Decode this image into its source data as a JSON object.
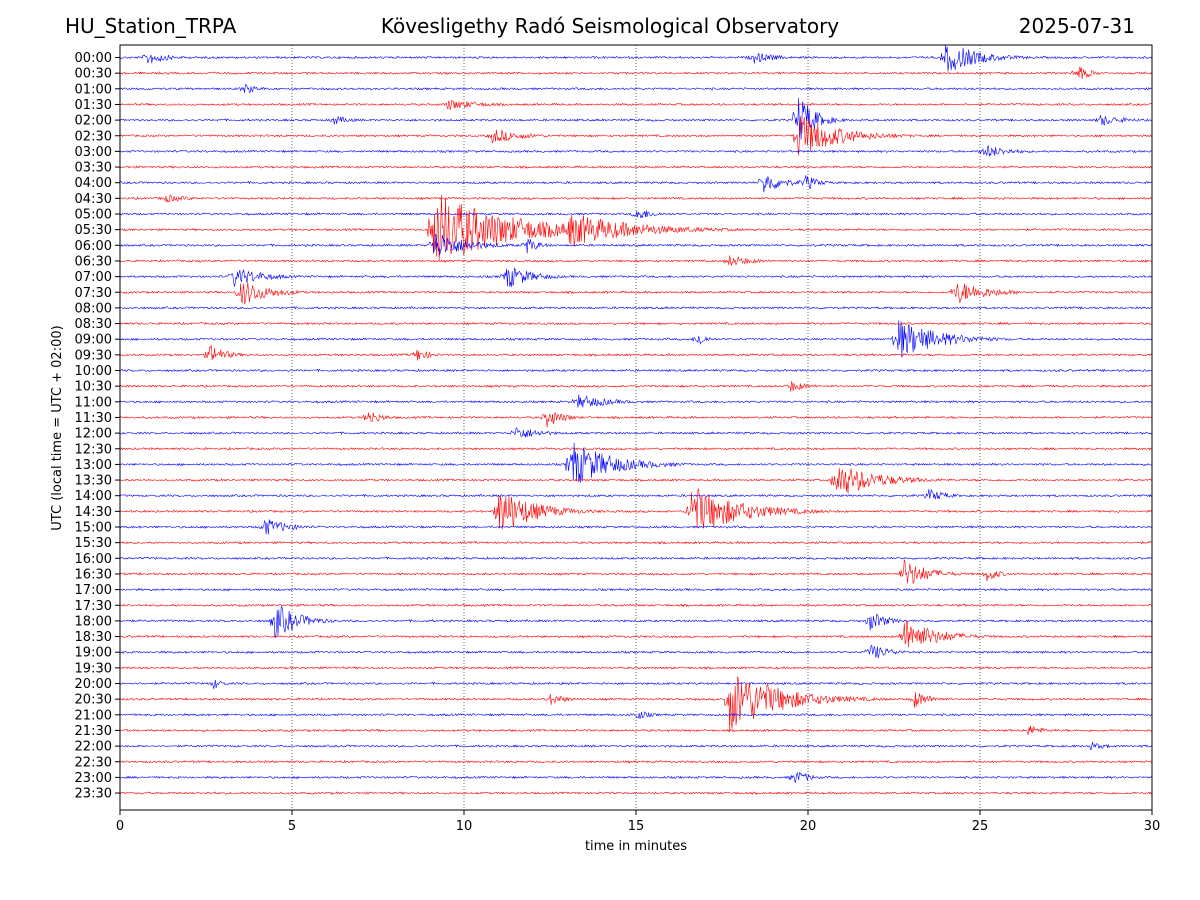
{
  "header": {
    "station": "HU_Station_TRPA",
    "observatory": "Kövesligethy Radó Seismological Observatory",
    "date": "2025-07-31"
  },
  "chart_data": {
    "type": "line",
    "title": "Kövesligethy Radó Seismological Observatory",
    "xlabel": "time in minutes",
    "ylabel": "UTC (local time = UTC + 02:00)",
    "xlim": [
      0,
      30
    ],
    "x_ticks": [
      0,
      5,
      10,
      15,
      20,
      25,
      30
    ],
    "x_tick_labels": [
      "0",
      "5",
      "10",
      "15",
      "20",
      "25",
      "30"
    ],
    "grid": "vertical dotted at x ticks",
    "series_colors": [
      "#0000ff",
      "#ff0000"
    ],
    "rows": [
      "00:00",
      "00:30",
      "01:00",
      "01:30",
      "02:00",
      "02:30",
      "03:00",
      "03:30",
      "04:00",
      "04:30",
      "05:00",
      "05:30",
      "06:00",
      "06:30",
      "07:00",
      "07:30",
      "08:00",
      "08:30",
      "09:00",
      "09:30",
      "10:00",
      "10:30",
      "11:00",
      "11:30",
      "12:00",
      "12:30",
      "13:00",
      "13:30",
      "14:00",
      "14:30",
      "15:00",
      "15:30",
      "16:00",
      "16:30",
      "17:00",
      "17:30",
      "18:00",
      "18:30",
      "19:00",
      "19:30",
      "20:00",
      "20:30",
      "21:00",
      "21:30",
      "22:00",
      "22:30",
      "23:00",
      "23:30"
    ],
    "events": [
      {
        "row": "00:00",
        "t": 0.8,
        "amp": 0.5,
        "dur": 1.2
      },
      {
        "row": "00:00",
        "t": 18.4,
        "amp": 0.4,
        "dur": 1.5
      },
      {
        "row": "00:00",
        "t": 24.0,
        "amp": 1.1,
        "dur": 2.0
      },
      {
        "row": "00:30",
        "t": 27.8,
        "amp": 0.6,
        "dur": 0.8
      },
      {
        "row": "01:00",
        "t": 3.6,
        "amp": 0.4,
        "dur": 0.8
      },
      {
        "row": "01:30",
        "t": 9.5,
        "amp": 0.4,
        "dur": 2.0
      },
      {
        "row": "02:00",
        "t": 6.2,
        "amp": 0.35,
        "dur": 1.0
      },
      {
        "row": "02:00",
        "t": 19.7,
        "amp": 1.8,
        "dur": 1.0
      },
      {
        "row": "02:00",
        "t": 28.5,
        "amp": 0.4,
        "dur": 1.5
      },
      {
        "row": "02:30",
        "t": 10.8,
        "amp": 0.5,
        "dur": 2.0
      },
      {
        "row": "02:30",
        "t": 19.7,
        "amp": 1.5,
        "dur": 2.5
      },
      {
        "row": "03:00",
        "t": 25.1,
        "amp": 0.5,
        "dur": 1.5
      },
      {
        "row": "04:00",
        "t": 18.7,
        "amp": 0.8,
        "dur": 1.2
      },
      {
        "row": "04:00",
        "t": 19.9,
        "amp": 0.6,
        "dur": 0.8
      },
      {
        "row": "04:30",
        "t": 1.3,
        "amp": 0.3,
        "dur": 1.5
      },
      {
        "row": "05:00",
        "t": 15.0,
        "amp": 0.5,
        "dur": 1.0
      },
      {
        "row": "05:30",
        "t": 9.1,
        "amp": 2.6,
        "dur": 4.5
      },
      {
        "row": "05:30",
        "t": 13.0,
        "amp": 1.2,
        "dur": 4.0
      },
      {
        "row": "06:00",
        "t": 9.1,
        "amp": 1.0,
        "dur": 2.0
      },
      {
        "row": "06:00",
        "t": 11.8,
        "amp": 0.6,
        "dur": 0.8
      },
      {
        "row": "06:30",
        "t": 17.7,
        "amp": 0.4,
        "dur": 1.5
      },
      {
        "row": "07:00",
        "t": 3.3,
        "amp": 0.7,
        "dur": 1.8
      },
      {
        "row": "07:00",
        "t": 11.2,
        "amp": 0.9,
        "dur": 1.5
      },
      {
        "row": "07:30",
        "t": 3.5,
        "amp": 0.9,
        "dur": 1.8
      },
      {
        "row": "07:30",
        "t": 24.3,
        "amp": 0.8,
        "dur": 2.0
      },
      {
        "row": "09:00",
        "t": 16.8,
        "amp": 0.6,
        "dur": 0.5
      },
      {
        "row": "09:00",
        "t": 22.6,
        "amp": 1.4,
        "dur": 2.5
      },
      {
        "row": "09:30",
        "t": 2.6,
        "amp": 0.7,
        "dur": 1.0
      },
      {
        "row": "09:30",
        "t": 8.6,
        "amp": 0.5,
        "dur": 0.8
      },
      {
        "row": "10:30",
        "t": 19.5,
        "amp": 0.4,
        "dur": 1.0
      },
      {
        "row": "11:00",
        "t": 13.3,
        "amp": 0.5,
        "dur": 2.0
      },
      {
        "row": "11:30",
        "t": 7.2,
        "amp": 0.6,
        "dur": 0.8
      },
      {
        "row": "11:30",
        "t": 12.4,
        "amp": 0.7,
        "dur": 1.0
      },
      {
        "row": "12:00",
        "t": 11.5,
        "amp": 0.5,
        "dur": 1.5
      },
      {
        "row": "13:00",
        "t": 13.1,
        "amp": 1.6,
        "dur": 2.5
      },
      {
        "row": "13:30",
        "t": 20.8,
        "amp": 1.2,
        "dur": 2.5
      },
      {
        "row": "14:00",
        "t": 23.5,
        "amp": 0.5,
        "dur": 1.0
      },
      {
        "row": "14:30",
        "t": 11.0,
        "amp": 1.6,
        "dur": 2.2
      },
      {
        "row": "14:30",
        "t": 16.6,
        "amp": 1.7,
        "dur": 3.0
      },
      {
        "row": "15:00",
        "t": 4.2,
        "amp": 0.6,
        "dur": 1.5
      },
      {
        "row": "16:30",
        "t": 22.8,
        "amp": 1.0,
        "dur": 1.5
      },
      {
        "row": "16:30",
        "t": 25.2,
        "amp": 0.5,
        "dur": 0.8
      },
      {
        "row": "18:00",
        "t": 4.5,
        "amp": 1.2,
        "dur": 1.5
      },
      {
        "row": "18:00",
        "t": 21.8,
        "amp": 0.7,
        "dur": 1.0
      },
      {
        "row": "18:30",
        "t": 22.8,
        "amp": 1.2,
        "dur": 2.0
      },
      {
        "row": "19:00",
        "t": 21.8,
        "amp": 0.6,
        "dur": 1.2
      },
      {
        "row": "20:00",
        "t": 2.7,
        "amp": 0.4,
        "dur": 0.6
      },
      {
        "row": "20:30",
        "t": 17.7,
        "amp": 2.2,
        "dur": 3.0
      },
      {
        "row": "20:30",
        "t": 23.1,
        "amp": 0.6,
        "dur": 1.0
      },
      {
        "row": "20:30",
        "t": 12.5,
        "amp": 0.4,
        "dur": 1.0
      },
      {
        "row": "21:00",
        "t": 15.0,
        "amp": 0.4,
        "dur": 0.8
      },
      {
        "row": "21:30",
        "t": 26.4,
        "amp": 0.4,
        "dur": 1.0
      },
      {
        "row": "22:00",
        "t": 28.2,
        "amp": 0.3,
        "dur": 1.0
      },
      {
        "row": "23:00",
        "t": 19.6,
        "amp": 0.5,
        "dur": 1.0
      }
    ]
  }
}
